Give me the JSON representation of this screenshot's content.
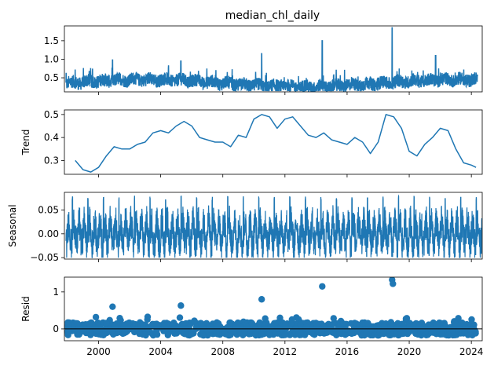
{
  "chart_data": [
    {
      "panel": "observed",
      "type": "line",
      "title": "median_chl_daily",
      "ylabel": "",
      "xlim": [
        1997.8,
        2024.7
      ],
      "ylim": [
        0.12,
        1.9
      ],
      "yticks": [
        0.5,
        1.0,
        1.5
      ],
      "ytick_labels": [
        "0.5",
        "1.0",
        "1.5"
      ],
      "color": "#1f77b4",
      "spikes": [
        {
          "x": 2000.9,
          "y": 0.98
        },
        {
          "x": 2005.3,
          "y": 0.95
        },
        {
          "x": 2010.5,
          "y": 1.15
        },
        {
          "x": 2014.4,
          "y": 1.5
        },
        {
          "x": 2018.9,
          "y": 1.85
        },
        {
          "x": 2021.7,
          "y": 1.1
        }
      ],
      "baseline": 0.35,
      "range_note": "daily values mostly between 0.15 and 0.8"
    },
    {
      "panel": "trend",
      "type": "line",
      "title": "",
      "ylabel": "Trend",
      "xlim": [
        1997.8,
        2024.7
      ],
      "ylim": [
        0.24,
        0.52
      ],
      "yticks": [
        0.3,
        0.4,
        0.5
      ],
      "ytick_labels": [
        "0.3",
        "0.4",
        "0.5"
      ],
      "color": "#1f77b4",
      "x": [
        1998.5,
        1999.0,
        1999.5,
        2000.0,
        2000.5,
        2001.0,
        2001.5,
        2002.0,
        2002.5,
        2003.0,
        2003.5,
        2004.0,
        2004.5,
        2005.0,
        2005.5,
        2006.0,
        2006.5,
        2007.0,
        2007.5,
        2008.0,
        2008.5,
        2009.0,
        2009.5,
        2010.0,
        2010.5,
        2011.0,
        2011.5,
        2012.0,
        2012.5,
        2013.0,
        2013.5,
        2014.0,
        2014.5,
        2015.0,
        2015.5,
        2016.0,
        2016.5,
        2017.0,
        2017.5,
        2018.0,
        2018.5,
        2019.0,
        2019.5,
        2020.0,
        2020.5,
        2021.0,
        2021.5,
        2022.0,
        2022.5,
        2023.0,
        2023.5,
        2024.0,
        2024.3
      ],
      "y": [
        0.3,
        0.26,
        0.25,
        0.27,
        0.32,
        0.36,
        0.35,
        0.35,
        0.37,
        0.38,
        0.42,
        0.43,
        0.42,
        0.45,
        0.47,
        0.45,
        0.4,
        0.39,
        0.38,
        0.38,
        0.36,
        0.41,
        0.4,
        0.48,
        0.5,
        0.49,
        0.44,
        0.48,
        0.49,
        0.45,
        0.41,
        0.4,
        0.42,
        0.39,
        0.38,
        0.37,
        0.4,
        0.38,
        0.33,
        0.38,
        0.5,
        0.49,
        0.44,
        0.34,
        0.32,
        0.37,
        0.4,
        0.44,
        0.43,
        0.35,
        0.29,
        0.28,
        0.27
      ]
    },
    {
      "panel": "seasonal",
      "type": "line",
      "title": "",
      "ylabel": "Seasonal",
      "xlim": [
        1997.8,
        2024.7
      ],
      "ylim": [
        -0.053,
        0.087
      ],
      "yticks": [
        -0.05,
        0.0,
        0.05
      ],
      "ytick_labels": [
        "−0.05",
        "0.00",
        "0.05"
      ],
      "color": "#1f77b4",
      "period_years": 1.0,
      "amplitude_range": [
        -0.05,
        0.08
      ]
    },
    {
      "panel": "resid",
      "type": "scatter",
      "title": "",
      "ylabel": "Resid",
      "xlim": [
        1997.8,
        2024.7
      ],
      "ylim": [
        -0.32,
        1.4
      ],
      "yticks": [
        0,
        1
      ],
      "ytick_labels": [
        "0",
        "1"
      ],
      "color": "#1f77b4",
      "zero_line": true,
      "outliers": [
        {
          "x": 2014.4,
          "y": 1.15
        },
        {
          "x": 2018.9,
          "y": 1.33
        },
        {
          "x": 2018.95,
          "y": 1.22
        },
        {
          "x": 2010.5,
          "y": 0.8
        },
        {
          "x": 2005.3,
          "y": 0.63
        },
        {
          "x": 2000.9,
          "y": 0.6
        }
      ]
    }
  ],
  "x_ticks": [
    2000,
    2004,
    2008,
    2012,
    2016,
    2020,
    2024
  ],
  "x_tick_labels": [
    "2000",
    "2004",
    "2008",
    "2012",
    "2016",
    "2020",
    "2024"
  ]
}
